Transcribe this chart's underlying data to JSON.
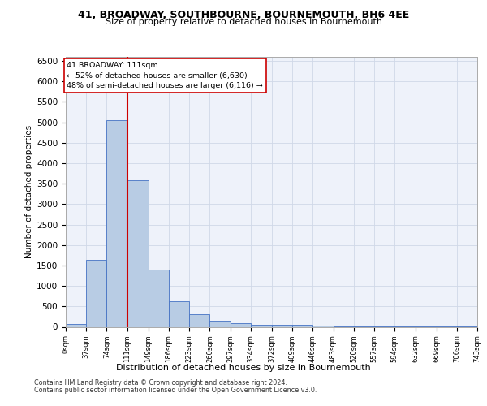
{
  "title1": "41, BROADWAY, SOUTHBOURNE, BOURNEMOUTH, BH6 4EE",
  "title2": "Size of property relative to detached houses in Bournemouth",
  "xlabel": "Distribution of detached houses by size in Bournemouth",
  "ylabel": "Number of detached properties",
  "annotation_line1": "41 BROADWAY: 111sqm",
  "annotation_line2": "← 52% of detached houses are smaller (6,630)",
  "annotation_line3": "48% of semi-detached houses are larger (6,116) →",
  "property_size": 111,
  "bin_edges": [
    0,
    37,
    74,
    111,
    149,
    186,
    223,
    260,
    297,
    334,
    372,
    409,
    446,
    483,
    520,
    557,
    594,
    632,
    669,
    706,
    743
  ],
  "bar_heights": [
    70,
    1630,
    5060,
    3590,
    1400,
    620,
    305,
    145,
    85,
    55,
    45,
    40,
    25,
    15,
    10,
    8,
    5,
    4,
    3,
    3
  ],
  "bar_color": "#b8cce4",
  "bar_edge_color": "#4472c4",
  "vline_color": "#cc0000",
  "grid_color": "#d0d8e8",
  "background_color": "#eef2fa",
  "footer1": "Contains HM Land Registry data © Crown copyright and database right 2024.",
  "footer2": "Contains public sector information licensed under the Open Government Licence v3.0.",
  "ylim": [
    0,
    6600
  ],
  "yticks": [
    0,
    500,
    1000,
    1500,
    2000,
    2500,
    3000,
    3500,
    4000,
    4500,
    5000,
    5500,
    6000,
    6500
  ]
}
